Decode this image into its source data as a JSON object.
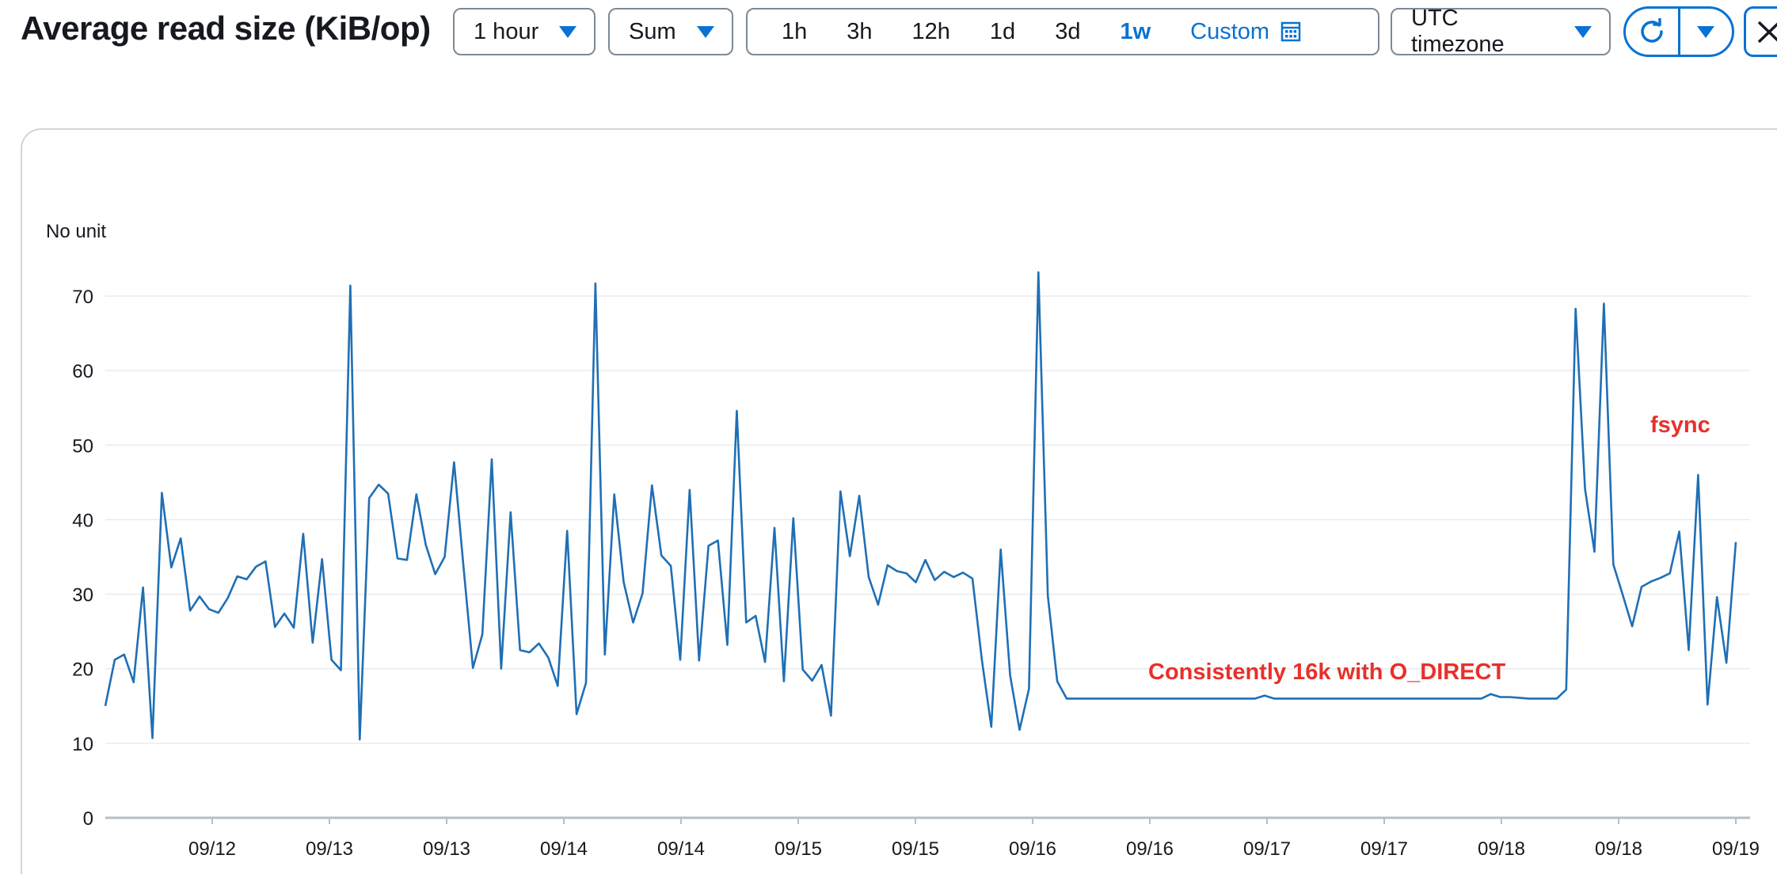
{
  "title": "Average read size (KiB/op)",
  "period_select": {
    "value": "1 hour"
  },
  "stat_select": {
    "value": "Sum"
  },
  "time_range": {
    "options": [
      "1h",
      "3h",
      "12h",
      "1d",
      "3d",
      "1w"
    ],
    "active": "1w",
    "custom_label": "Custom"
  },
  "timezone_select": {
    "value": "UTC timezone"
  },
  "icons": {
    "period_caret": "caret-down-icon",
    "stat_caret": "caret-down-icon",
    "custom": "calendar-icon",
    "timezone_caret": "caret-down-icon",
    "refresh": "refresh-icon",
    "refresh_menu": "caret-down-icon",
    "close": "close-icon"
  },
  "colors": {
    "accent": "#0972d3",
    "line": "#1f6fb5",
    "annotation": "#e8302b",
    "grid": "#e9ebed"
  },
  "chart_data": {
    "type": "line",
    "unit_label": "No unit",
    "ylim": [
      0,
      72
    ],
    "yticks": [
      0,
      10,
      20,
      30,
      40,
      50,
      60,
      70
    ],
    "xtick_labels": [
      "09/12",
      "09/13",
      "09/13",
      "09/14",
      "09/14",
      "09/15",
      "09/15",
      "09/16",
      "09/16",
      "09/17",
      "09/17",
      "09/18",
      "09/18",
      "09/19"
    ],
    "grid": true,
    "series": [
      {
        "values": [
          15.0,
          21.2,
          21.9,
          18.2,
          30.9,
          10.7,
          43.6,
          33.6,
          37.5,
          27.8,
          29.7,
          28.0,
          27.5,
          29.5,
          32.4,
          32.0,
          33.7,
          34.4,
          25.6,
          27.4,
          25.5,
          38.1,
          23.5,
          34.7,
          21.2,
          19.8,
          71.4,
          10.5,
          42.9,
          44.7,
          43.5,
          34.8,
          34.6,
          43.4,
          36.6,
          32.7,
          35.0,
          47.7,
          33.7,
          20.1,
          24.6,
          48.1,
          20.0,
          41.0,
          22.5,
          22.2,
          23.4,
          21.5,
          17.7,
          38.5,
          13.9,
          18.1,
          71.7,
          21.9,
          43.4,
          31.6,
          26.2,
          30.1,
          44.6,
          35.2,
          33.8,
          21.2,
          44.0,
          21.1,
          36.5,
          37.2,
          23.2,
          54.6,
          26.2,
          27.1,
          20.9,
          38.9,
          18.3,
          40.2,
          19.9,
          18.4,
          20.5,
          13.7,
          43.8,
          35.1,
          43.2,
          32.3,
          28.6,
          33.9,
          33.1,
          32.8,
          31.6,
          34.6,
          31.9,
          33.0,
          32.3,
          32.9,
          32.1,
          21.2,
          12.2,
          36.0,
          19.1,
          11.8,
          17.3,
          73.2,
          29.8,
          18.3,
          16.0,
          16.0,
          16.0,
          16.0,
          16.0,
          16.0,
          16.0,
          16.0,
          16.0,
          16.0,
          16.0,
          16.0,
          16.0,
          16.0,
          16.0,
          16.0,
          16.0,
          16.0,
          16.0,
          16.0,
          16.0,
          16.4,
          16.0,
          16.0,
          16.0,
          16.0,
          16.0,
          16.0,
          16.0,
          16.0,
          16.0,
          16.0,
          16.0,
          16.0,
          16.0,
          16.0,
          16.0,
          16.0,
          16.0,
          16.0,
          16.0,
          16.0,
          16.0,
          16.0,
          16.0,
          16.6,
          16.2,
          16.2,
          16.1,
          16.0,
          16.0,
          16.0,
          16.0,
          17.2,
          68.3,
          44.1,
          35.7,
          69.0,
          34.0,
          29.9,
          25.7,
          31.0,
          31.7,
          32.2,
          32.8,
          38.4,
          22.5,
          46.0,
          15.2,
          29.6,
          20.8,
          37.0
        ]
      }
    ],
    "annotations": [
      "Consistently 16k with O_DIRECT",
      "fsync"
    ]
  }
}
